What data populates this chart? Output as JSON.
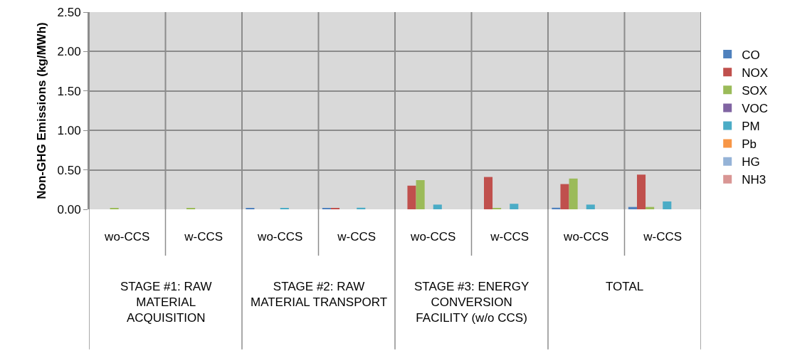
{
  "chart_data": {
    "type": "bar",
    "ylabel": "Non-GHG Emissions (kg/MWh)",
    "categories": [
      "wo-CCS",
      "w-CCS",
      "wo-CCS",
      "w-CCS",
      "wo-CCS",
      "w-CCS",
      "wo-CCS",
      "w-CCS"
    ],
    "annotations": [
      "STAGE #1: RAW MATERIAL ACQUISITION",
      "STAGE #2: RAW MATERIAL TRANSPORT",
      "STAGE #3: ENERGY CONVERSION FACILITY (w/o CCS)",
      "TOTAL"
    ],
    "series": [
      {
        "name": "CO",
        "color": "#4f81bd",
        "values": [
          0,
          0,
          0.01,
          0.01,
          0,
          0,
          0.02,
          0.03
        ]
      },
      {
        "name": "NOX",
        "color": "#c0504d",
        "values": [
          0,
          0,
          0,
          0.01,
          0.3,
          0.41,
          0.32,
          0.44
        ]
      },
      {
        "name": "SOX",
        "color": "#9bbb59",
        "values": [
          0.01,
          0.01,
          0,
          0,
          0.37,
          0.01,
          0.39,
          0.03
        ]
      },
      {
        "name": "VOC",
        "color": "#8064a2",
        "values": [
          0,
          0,
          0,
          0,
          0,
          0,
          0,
          0
        ]
      },
      {
        "name": "PM",
        "color": "#4bacc6",
        "values": [
          0,
          0,
          0.01,
          0.02,
          0.06,
          0.07,
          0.06,
          0.1
        ]
      },
      {
        "name": "Pb",
        "color": "#f79646",
        "values": [
          0,
          0,
          0,
          0,
          0,
          0,
          0,
          0
        ]
      },
      {
        "name": "HG",
        "color": "#95b3d7",
        "values": [
          0,
          0,
          0,
          0,
          0,
          0,
          0,
          0
        ]
      },
      {
        "name": "NH3",
        "color": "#d99694",
        "values": [
          0,
          0,
          0,
          0,
          0,
          0,
          0,
          0
        ]
      }
    ],
    "ylim": [
      0,
      2.5
    ],
    "yticks": [
      {
        "value": 0,
        "label": "0.00"
      },
      {
        "value": 0.5,
        "label": "0.50"
      },
      {
        "value": 1,
        "label": "1.00"
      },
      {
        "value": 1.5,
        "label": "1.50"
      },
      {
        "value": 2,
        "label": "2.00"
      },
      {
        "value": 2.5,
        "label": "2.50"
      }
    ],
    "grid": true,
    "legend": "right"
  }
}
